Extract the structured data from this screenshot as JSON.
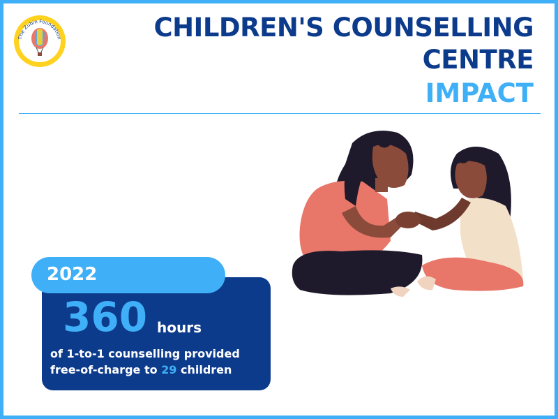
{
  "header": {
    "logo_text": "The Zubin Foundation",
    "title_line1": "CHILDREN'S COUNSELLING",
    "title_line2": "CENTRE",
    "subtitle": "IMPACT"
  },
  "stat": {
    "year": "2022",
    "number": "360",
    "unit": "hours",
    "line1": "of 1-to-1 counselling provided",
    "line2_prefix": "free-of-charge to ",
    "children_count": "29",
    "line2_suffix": " children"
  },
  "colors": {
    "accent": "#3fb0f7",
    "navy": "#0d3b8c",
    "skin": "#8a4b3b",
    "coral": "#e8776a",
    "hair": "#1f1a2b"
  },
  "illustration": {
    "icon": "mother-and-child-illustration"
  }
}
